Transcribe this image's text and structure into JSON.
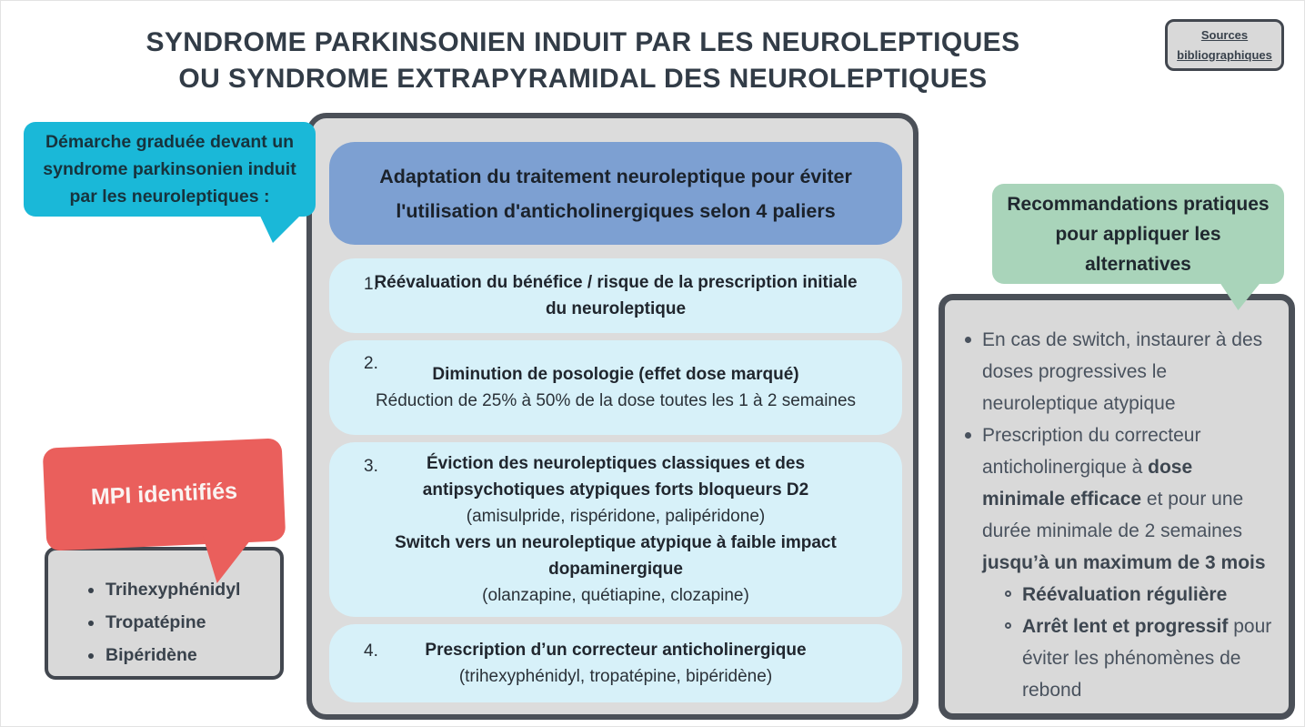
{
  "title": {
    "line1": "SYNDROME PARKINSONIEN INDUIT PAR LES NEUROLEPTIQUES",
    "line2": "OU SYNDROME EXTRAPYRAMIDAL DES NEUROLEPTIQUES"
  },
  "sources_button": {
    "label": "Sources bibliographiques"
  },
  "demarche_bubble": {
    "text": "Démarche graduée devant un syndrome parkinsonien induit par les neuroleptiques :"
  },
  "central_panel": {
    "header": "Adaptation du traitement neuroleptique pour éviter l'utilisation d'anticholinergiques selon 4 paliers",
    "steps": [
      {
        "number": "1.",
        "bold": "Réévaluation du bénéfice / risque de la prescription initiale du neuroleptique"
      },
      {
        "number": "2.",
        "bold": "Diminution de posologie (effet dose marqué)",
        "normal": "Réduction de 25% à 50% de la dose toutes les 1 à 2 semaines"
      },
      {
        "number": "3.",
        "bold1": "Éviction des neuroleptiques classiques et des antipsychotiques atypiques forts bloqueurs D2",
        "normal1": "(amisulpride, rispéridone, palipéridone)",
        "bold2": "Switch vers un neuroleptique atypique à faible impact dopaminergique",
        "normal2": "(olanzapine, quétiapine, clozapine)"
      },
      {
        "number": "4.",
        "bold": "Prescription d’un correcteur anticholinergique",
        "normal": "(trihexyphénidyl, tropatépine, bipéridène)"
      }
    ]
  },
  "mpi": {
    "bubble_label": "MPI identifiés",
    "items": [
      "Trihexyphénidyl",
      "Tropatépine",
      "Bipéridène"
    ]
  },
  "recommendations": {
    "bubble_text": "Recommandations pratiques pour appliquer les alternatives",
    "item1": "En cas de switch, instaurer à des doses progressives le neuroleptique atypique",
    "item2": {
      "part1": "Prescription du correcteur anticholinergique à ",
      "part2_bold": "dose minimale efficace",
      "part3": " et pour une durée minimale de 2 semaines ",
      "part4_bold": "jusqu’à un maximum de 3 mois"
    },
    "sub1_bold": "Réévaluation régulière",
    "sub2_bold": "Arrêt lent et progressif",
    "sub2_normal": " pour éviter les phénomènes de rebond"
  },
  "colors": {
    "cyan_bubble": "#1ab8d8",
    "red_bubble": "#ea5f5c",
    "green_bubble": "#a9d4ba",
    "blue_header": "#7da0d2",
    "step_background": "#d7f1f9",
    "panel_background": "#dcdcdc",
    "box_background": "#d9d9d9",
    "dark_border": "#4b5058",
    "title_text": "#323c47"
  }
}
